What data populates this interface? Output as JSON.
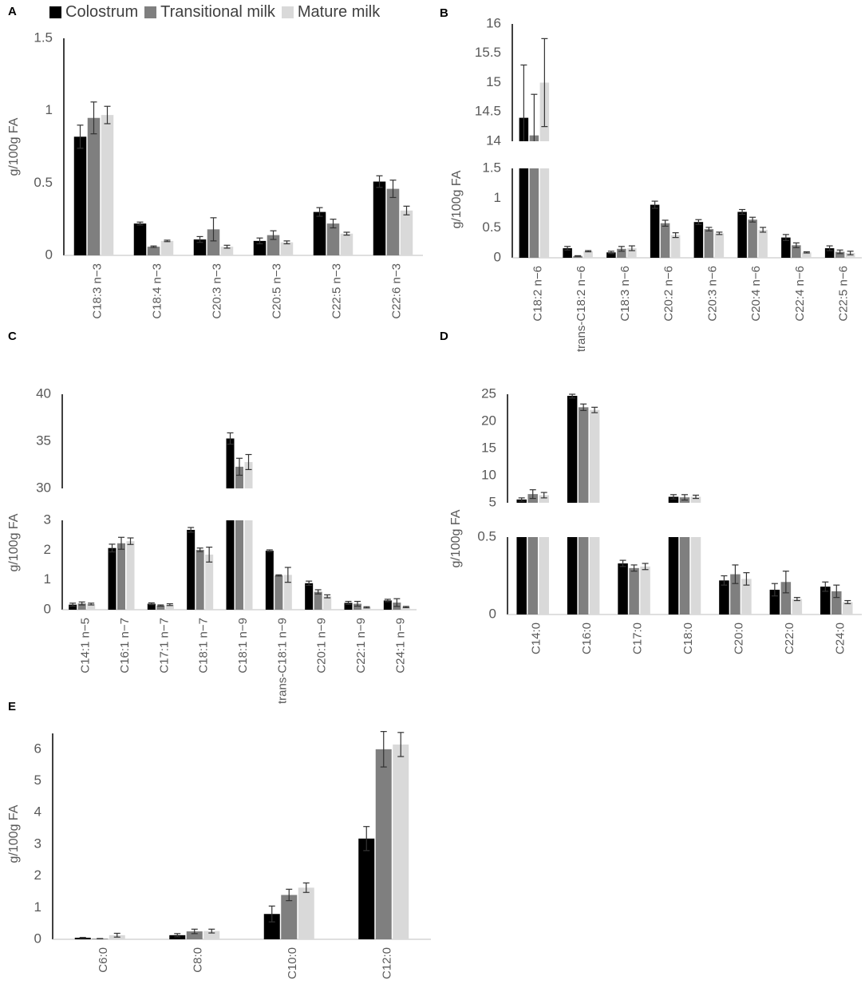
{
  "legend": [
    {
      "name": "Colostrum",
      "color": "#000000"
    },
    {
      "name": "Transitional milk",
      "color": "#7f7f7f"
    },
    {
      "name": "Mature milk",
      "color": "#d9d9d9"
    }
  ],
  "chart_data": [
    {
      "panel": "A",
      "type": "bar",
      "ylabel": "g/100g FA",
      "categories": [
        "C18:3 n−3",
        "C18:4 n−3",
        "C20:3 n−3",
        "C20:5 n−3",
        "C22:5 n−3",
        "C22:6 n−3"
      ],
      "series": [
        {
          "name": "Colostrum",
          "values": [
            0.82,
            0.22,
            0.11,
            0.1,
            0.3,
            0.51
          ],
          "errors": [
            0.08,
            0.01,
            0.02,
            0.02,
            0.03,
            0.04
          ]
        },
        {
          "name": "Transitional milk",
          "values": [
            0.95,
            0.06,
            0.18,
            0.14,
            0.22,
            0.46
          ],
          "errors": [
            0.11,
            0.005,
            0.08,
            0.03,
            0.03,
            0.06
          ]
        },
        {
          "name": "Mature milk",
          "values": [
            0.97,
            0.1,
            0.06,
            0.09,
            0.15,
            0.31
          ],
          "errors": [
            0.06,
            0.005,
            0.01,
            0.01,
            0.01,
            0.03
          ]
        }
      ],
      "yticks": [
        "0",
        "0.5",
        "1",
        "1.5"
      ],
      "ylim": [
        0,
        1.5
      ],
      "grid": false
    },
    {
      "panel": "B",
      "type": "bar",
      "ylabel": "g/100g FA",
      "categories": [
        "C18:2 n−6",
        "trans-C18:2 n−6",
        "C18:3 n−6",
        "C20:2 n−6",
        "C20:3 n−6",
        "C20:4 n−6",
        "C22:4 n−6",
        "C22:5 n−6"
      ],
      "series": [
        {
          "name": "Colostrum",
          "values": [
            14.4,
            0.16,
            0.09,
            0.89,
            0.6,
            0.77,
            0.34,
            0.16
          ],
          "errors": [
            0.9,
            0.03,
            0.02,
            0.06,
            0.04,
            0.04,
            0.05,
            0.04
          ]
        },
        {
          "name": "Transitional milk",
          "values": [
            14.1,
            0.03,
            0.15,
            0.58,
            0.48,
            0.64,
            0.21,
            0.1
          ],
          "errors": [
            0.7,
            0.005,
            0.04,
            0.05,
            0.03,
            0.04,
            0.04,
            0.03
          ]
        },
        {
          "name": "Mature milk",
          "values": [
            15.0,
            0.11,
            0.16,
            0.38,
            0.41,
            0.47,
            0.09,
            0.08
          ],
          "errors": [
            0.75,
            0.01,
            0.04,
            0.04,
            0.02,
            0.04,
            0.01,
            0.03
          ]
        }
      ],
      "yticks_lower": [
        "0",
        "0.5",
        "1",
        "1.5"
      ],
      "yticks_upper": [
        "14",
        "14.5",
        "15",
        "15.5",
        "16"
      ],
      "ylim_lower": [
        0,
        1.5
      ],
      "ylim_upper": [
        14,
        16
      ],
      "broken_axis": true,
      "grid": false
    },
    {
      "panel": "C",
      "type": "bar",
      "ylabel": "g/100g FA",
      "categories": [
        "C14:1 n−5",
        "C16:1 n−7",
        "C17:1 n−7",
        "C18:1 n−7",
        "C18:1 n−9",
        "trans-C18:1 n−9",
        "C20:1 n−9",
        "C22:1 n−9",
        "C24:1 n−9"
      ],
      "series": [
        {
          "name": "Colostrum",
          "values": [
            0.17,
            2.07,
            0.2,
            2.68,
            35.3,
            1.98,
            0.89,
            0.23,
            0.31
          ],
          "errors": [
            0.05,
            0.13,
            0.03,
            0.08,
            0.6,
            0.03,
            0.07,
            0.05,
            0.04
          ]
        },
        {
          "name": "Transitional milk",
          "values": [
            0.21,
            2.23,
            0.14,
            2.01,
            32.3,
            1.15,
            0.6,
            0.2,
            0.24
          ],
          "errors": [
            0.05,
            0.2,
            0.02,
            0.06,
            0.9,
            0.02,
            0.07,
            0.08,
            0.13
          ]
        },
        {
          "name": "Mature milk",
          "values": [
            0.19,
            2.3,
            0.17,
            1.85,
            32.8,
            1.17,
            0.45,
            0.08,
            0.09
          ],
          "errors": [
            0.03,
            0.11,
            0.03,
            0.25,
            0.8,
            0.25,
            0.05,
            0.02,
            0.02
          ]
        }
      ],
      "yticks_lower": [
        "0",
        "1",
        "2",
        "3"
      ],
      "yticks_upper": [
        "30",
        "35",
        "40"
      ],
      "ylim_lower": [
        0,
        3
      ],
      "ylim_upper": [
        30,
        40
      ],
      "broken_axis": true,
      "grid": false
    },
    {
      "panel": "D",
      "type": "bar",
      "ylabel": "g/100g FA",
      "categories": [
        "C14:0",
        "C16:0",
        "C17:0",
        "C18:0",
        "C20:0",
        "C22:0",
        "C24:0"
      ],
      "series": [
        {
          "name": "Colostrum",
          "values": [
            5.6,
            24.7,
            0.33,
            6.1,
            0.22,
            0.16,
            0.18
          ],
          "errors": [
            0.3,
            0.4,
            0.02,
            0.4,
            0.03,
            0.04,
            0.03
          ]
        },
        {
          "name": "Transitional milk",
          "values": [
            6.6,
            22.6,
            0.3,
            6.0,
            0.26,
            0.21,
            0.15
          ],
          "errors": [
            0.8,
            0.6,
            0.02,
            0.5,
            0.06,
            0.07,
            0.04
          ]
        },
        {
          "name": "Mature milk",
          "values": [
            6.4,
            22.1,
            0.31,
            6.1,
            0.23,
            0.1,
            0.08
          ],
          "errors": [
            0.5,
            0.5,
            0.02,
            0.3,
            0.04,
            0.01,
            0.01
          ]
        }
      ],
      "yticks_lower": [
        "0",
        "0.5"
      ],
      "yticks_upper": [
        "5",
        "10",
        "15",
        "20",
        "25"
      ],
      "ylim_lower": [
        0,
        0.5
      ],
      "ylim_upper": [
        5,
        25
      ],
      "broken_axis": true,
      "grid": false
    },
    {
      "panel": "E",
      "type": "bar",
      "ylabel": "g/100g FA",
      "categories": [
        "C6:0",
        "C8:0",
        "C10:0",
        "C12:0"
      ],
      "series": [
        {
          "name": "Colostrum",
          "values": [
            0.05,
            0.13,
            0.8,
            3.18
          ],
          "errors": [
            0.01,
            0.05,
            0.25,
            0.38
          ]
        },
        {
          "name": "Transitional milk",
          "values": [
            0.02,
            0.25,
            1.4,
            6.0
          ],
          "errors": [
            0.005,
            0.07,
            0.18,
            0.56
          ]
        },
        {
          "name": "Mature milk",
          "values": [
            0.13,
            0.26,
            1.63,
            6.15
          ],
          "errors": [
            0.06,
            0.06,
            0.15,
            0.38
          ]
        }
      ],
      "yticks": [
        "0",
        "1",
        "2",
        "3",
        "4",
        "5",
        "6"
      ],
      "ylim": [
        0,
        6.5
      ],
      "grid": false
    }
  ]
}
